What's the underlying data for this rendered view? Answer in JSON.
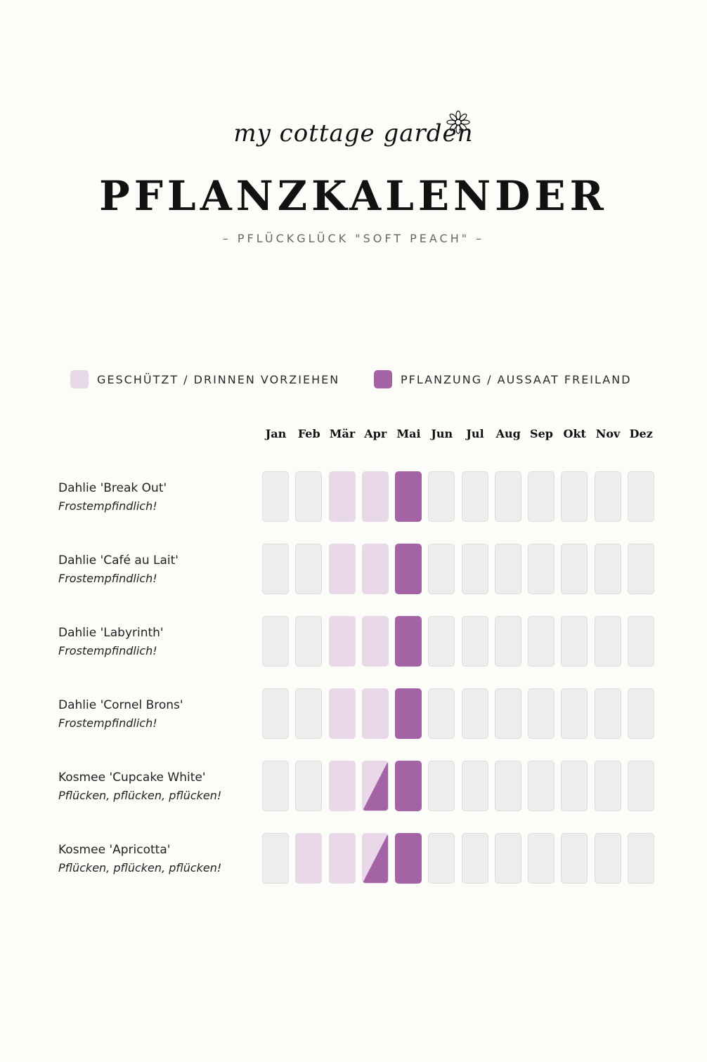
{
  "header": {
    "logo_text": "my cottage garden",
    "title": "PFLANZKALENDER",
    "subtitle": "– PFLÜCKGLÜCK \"SOFT PEACH\" –"
  },
  "legend": [
    {
      "label": "GESCHÜTZT / DRINNEN VORZIEHEN",
      "color": "#e9d8e8"
    },
    {
      "label": "PFLANZUNG / AUSSAAT FREILAND",
      "color": "#a363a5"
    }
  ],
  "colors": {
    "empty": "#ededed",
    "protected": "#e9d8e8",
    "outdoor": "#a363a5",
    "background": "#fcfcf9"
  },
  "months": [
    "Jan",
    "Feb",
    "Mär",
    "Apr",
    "Mai",
    "Jun",
    "Jul",
    "Aug",
    "Sep",
    "Okt",
    "Nov",
    "Dez"
  ],
  "plants": [
    {
      "name": "Dahlie 'Break Out'",
      "note": "Frostempfindlich!",
      "schedule": [
        "none",
        "none",
        "protected",
        "protected",
        "outdoor",
        "none",
        "none",
        "none",
        "none",
        "none",
        "none",
        "none"
      ]
    },
    {
      "name": "Dahlie 'Café au Lait'",
      "note": "Frostempfindlich!",
      "schedule": [
        "none",
        "none",
        "protected",
        "protected",
        "outdoor",
        "none",
        "none",
        "none",
        "none",
        "none",
        "none",
        "none"
      ]
    },
    {
      "name": "Dahlie 'Labyrinth'",
      "note": "Frostempfindlich!",
      "schedule": [
        "none",
        "none",
        "protected",
        "protected",
        "outdoor",
        "none",
        "none",
        "none",
        "none",
        "none",
        "none",
        "none"
      ]
    },
    {
      "name": "Dahlie 'Cornel Brons'",
      "note": "Frostempfindlich!",
      "schedule": [
        "none",
        "none",
        "protected",
        "protected",
        "outdoor",
        "none",
        "none",
        "none",
        "none",
        "none",
        "none",
        "none"
      ]
    },
    {
      "name": "Kosmee 'Cupcake White'",
      "note": "Pflücken, pflücken, pflücken!",
      "schedule": [
        "none",
        "none",
        "protected",
        "split",
        "outdoor",
        "none",
        "none",
        "none",
        "none",
        "none",
        "none",
        "none"
      ]
    },
    {
      "name": "Kosmee 'Apricotta'",
      "note": "Pflücken, pflücken, pflücken!",
      "schedule": [
        "none",
        "protected",
        "protected",
        "split",
        "outdoor",
        "none",
        "none",
        "none",
        "none",
        "none",
        "none",
        "none"
      ]
    }
  ]
}
